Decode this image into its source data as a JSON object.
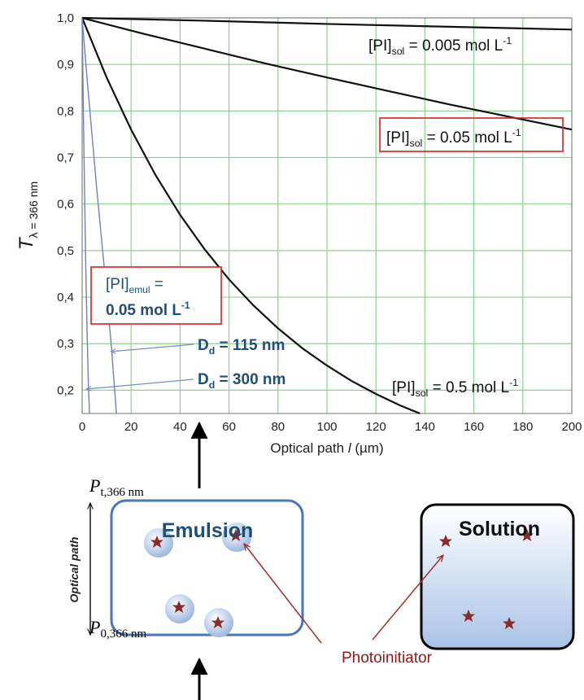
{
  "chart_data": {
    "type": "line",
    "xlim": [
      0,
      200
    ],
    "ylim": [
      0.15,
      1.0
    ],
    "xticks": [
      0,
      20,
      40,
      60,
      80,
      100,
      120,
      140,
      160,
      180,
      200
    ],
    "yticks": [
      {
        "value": 0.2,
        "label": "0,2"
      },
      {
        "value": 0.3,
        "label": "0,3"
      },
      {
        "value": 0.4,
        "label": "0,4"
      },
      {
        "value": 0.5,
        "label": "0,5"
      },
      {
        "value": 0.6,
        "label": "0,6"
      },
      {
        "value": 0.7,
        "label": "0,7"
      },
      {
        "value": 0.8,
        "label": "0,8"
      },
      {
        "value": 0.9,
        "label": "0,9"
      },
      {
        "value": 1.0,
        "label": "1,0"
      }
    ],
    "grid": true,
    "grid_color": "#8fd18f",
    "x_label": {
      "text": "Optical path ",
      "italic": "l",
      "unit": " (µm)"
    },
    "y_label": {
      "main": "T",
      "sub": "λ = 366 nm"
    },
    "series": [
      {
        "label": {
          "main": "[PI]",
          "sub": "sol",
          "text": " = 0.005 mol L",
          "sup": "-1"
        },
        "color": "#111111",
        "x": [
          0,
          50,
          100,
          150,
          200
        ],
        "values": [
          1.0,
          0.994,
          0.987,
          0.981,
          0.975
        ]
      },
      {
        "label": {
          "main": "[PI]",
          "sub": "sol",
          "text": " = 0.05 mol L",
          "sup": "-1"
        },
        "color": "#111111",
        "x": [
          0,
          25,
          50,
          75,
          100,
          125,
          150,
          175,
          200
        ],
        "values": [
          1.0,
          0.966,
          0.934,
          0.902,
          0.872,
          0.843,
          0.814,
          0.787,
          0.76
        ]
      },
      {
        "label": {
          "main": "[PI]",
          "sub": "sol",
          "text": " = 0.5 mol L",
          "sup": "-1"
        },
        "color": "#111111",
        "x": [
          0,
          10,
          20,
          30,
          40,
          50,
          60,
          70,
          80,
          90,
          100,
          110,
          120,
          130,
          138
        ],
        "values": [
          1.0,
          0.872,
          0.76,
          0.662,
          0.577,
          0.503,
          0.438,
          0.382,
          0.333,
          0.29,
          0.253,
          0.22,
          0.192,
          0.167,
          0.15
        ]
      },
      {
        "label": {
          "main": "D",
          "sub": "d",
          "text": " = 115 nm"
        },
        "color": "#6f7fc0",
        "x": [
          0,
          2,
          4,
          6,
          8,
          10,
          12,
          14
        ],
        "values": [
          1.0,
          0.87,
          0.75,
          0.63,
          0.52,
          0.41,
          0.29,
          0.15
        ]
      },
      {
        "label": {
          "main": "D",
          "sub": "d",
          "text": " = 300 nm"
        },
        "color": "#6f7fc0",
        "x": [
          0,
          0.5,
          1,
          1.5,
          2,
          2.5,
          3
        ],
        "values": [
          1.0,
          0.8,
          0.62,
          0.46,
          0.33,
          0.22,
          0.15
        ]
      }
    ],
    "annotations": [
      {
        "main": "[PI]",
        "sub": "emul",
        "text": " =",
        "line2": "0.05 mol L",
        "sup": "-1"
      }
    ]
  },
  "diagram": {
    "power_out": {
      "main": "P",
      "sub": "t,366 nm"
    },
    "power_in": {
      "main": "P",
      "sub": "0,366 nm"
    },
    "optical_path": "Optical path",
    "emulsion": "Emulsion",
    "solution": "Solution",
    "photoinitiator": "Photoinitiator"
  }
}
